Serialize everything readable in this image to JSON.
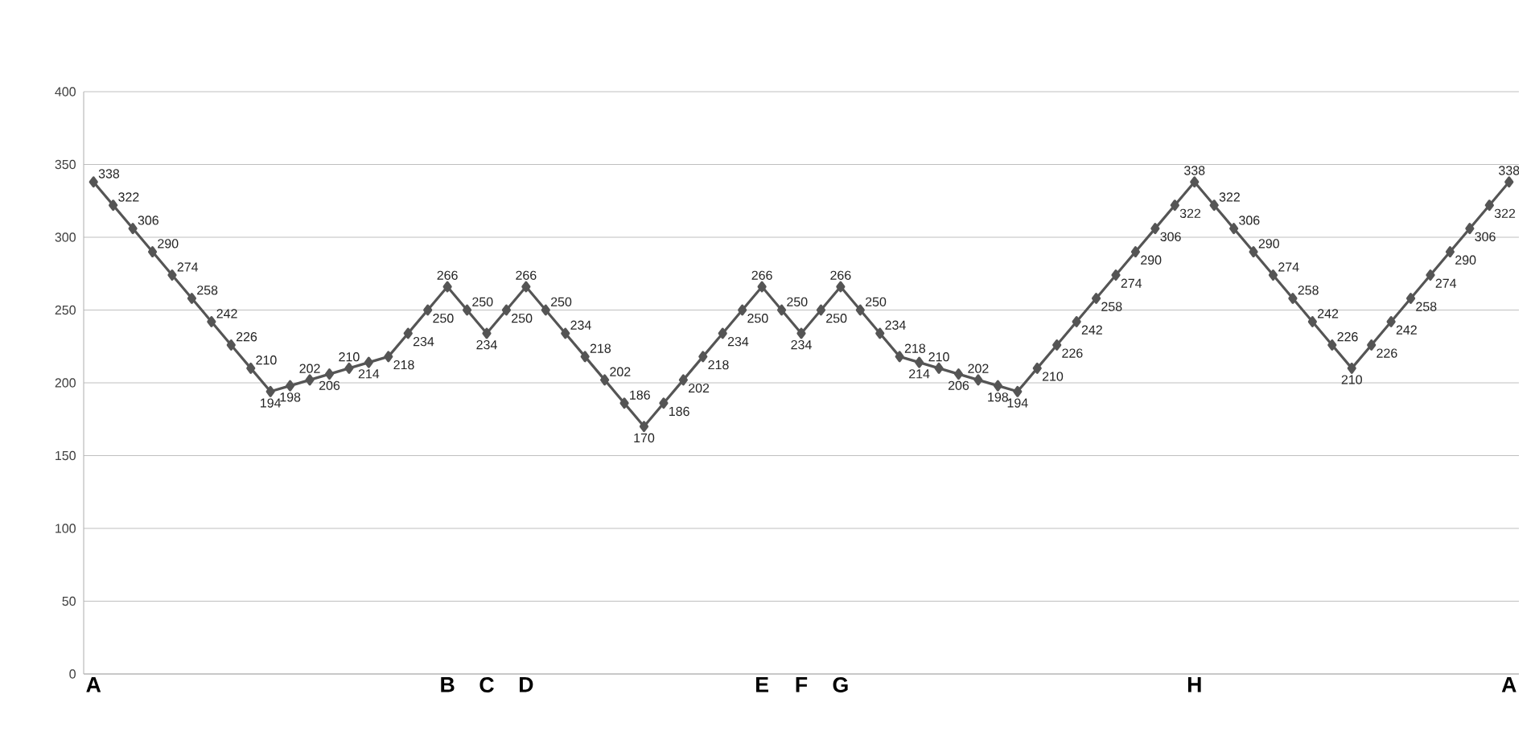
{
  "chart_data": {
    "type": "line",
    "categories": [
      "A",
      null,
      null,
      null,
      null,
      null,
      null,
      null,
      null,
      null,
      null,
      null,
      null,
      null,
      null,
      null,
      null,
      null,
      "B",
      null,
      "C",
      null,
      "D",
      null,
      null,
      null,
      null,
      null,
      null,
      null,
      null,
      null,
      null,
      null,
      "E",
      null,
      "F",
      null,
      "G",
      null,
      null,
      null,
      null,
      null,
      null,
      null,
      null,
      null,
      null,
      null,
      null,
      null,
      null,
      null,
      null,
      null,
      "H",
      null,
      null,
      null,
      null,
      null,
      null,
      null,
      null,
      null,
      null,
      null,
      null,
      null,
      null,
      null,
      "A"
    ],
    "values": [
      338,
      322,
      306,
      290,
      274,
      258,
      242,
      226,
      210,
      194,
      198,
      202,
      206,
      210,
      214,
      218,
      234,
      250,
      266,
      250,
      234,
      250,
      266,
      250,
      234,
      218,
      202,
      186,
      170,
      186,
      202,
      218,
      234,
      250,
      266,
      250,
      234,
      250,
      266,
      250,
      234,
      218,
      214,
      210,
      206,
      202,
      198,
      194,
      210,
      226,
      242,
      258,
      274,
      290,
      306,
      322,
      338,
      322,
      306,
      290,
      274,
      258,
      242,
      226,
      210,
      226,
      242,
      258,
      274,
      290,
      306,
      322,
      338
    ],
    "color": "#555555",
    "ylim": [
      0,
      400
    ],
    "yticks": [
      0,
      50,
      100,
      150,
      200,
      250,
      300,
      350,
      400
    ],
    "grid": "y",
    "marker": "diamond",
    "line_style": "solid",
    "data_labels": true
  }
}
